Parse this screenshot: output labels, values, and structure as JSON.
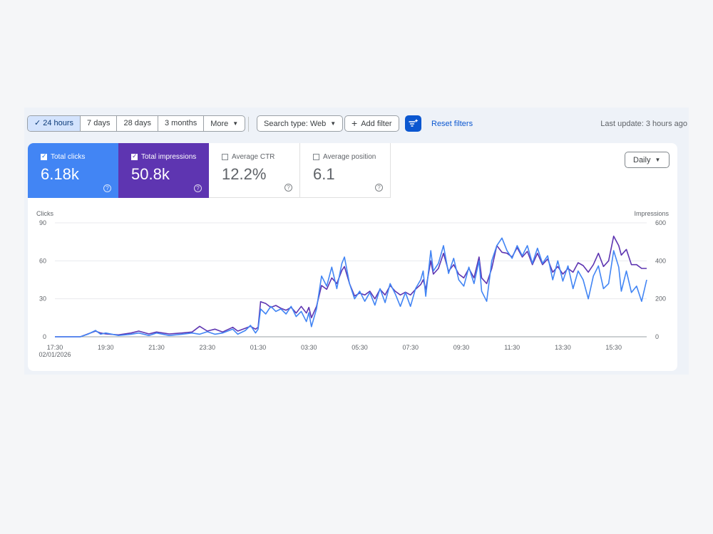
{
  "toolbar": {
    "ranges": [
      {
        "label": "24 hours",
        "active": true
      },
      {
        "label": "7 days",
        "active": false
      },
      {
        "label": "28 days",
        "active": false
      },
      {
        "label": "3 months",
        "active": false
      },
      {
        "label": "More",
        "active": false
      }
    ],
    "search_type": "Search type: Web",
    "add_filter": "Add filter",
    "reset_filters": "Reset filters",
    "last_update": "Last update: 3 hours ago"
  },
  "metrics": {
    "clicks": {
      "label": "Total clicks",
      "value": "6.18k",
      "checked": true
    },
    "impressions": {
      "label": "Total impressions",
      "value": "50.8k",
      "checked": true
    },
    "ctr": {
      "label": "Average CTR",
      "value": "12.2%",
      "checked": false
    },
    "position": {
      "label": "Average position",
      "value": "6.1",
      "checked": false
    }
  },
  "granularity": "Daily",
  "colors": {
    "clicks": "#4285f4",
    "impressions": "#5e35b1",
    "accent": "#0b57d0"
  },
  "chart_data": {
    "type": "line",
    "ylabel_left": "Clicks",
    "ylabel_right": "Impressions",
    "y_left_ticks": [
      0,
      30,
      60,
      90
    ],
    "y_right_ticks": [
      0,
      200,
      400,
      600
    ],
    "ylim_left": [
      0,
      90
    ],
    "ylim_right": [
      0,
      600
    ],
    "x_ticks": [
      "17:30",
      "19:30",
      "21:30",
      "23:30",
      "01:30",
      "03:30",
      "05:30",
      "07:30",
      "09:30",
      "11:30",
      "13:30",
      "15:30"
    ],
    "x_start_date": "02/01/2026",
    "x_range_hours": [
      0,
      23.3
    ],
    "grid": true,
    "series": [
      {
        "name": "Clicks",
        "axis": "left",
        "color": "#4285f4",
        "points": [
          [
            0,
            0
          ],
          [
            1,
            0
          ],
          [
            1.3,
            2
          ],
          [
            1.6,
            5
          ],
          [
            1.8,
            2
          ],
          [
            2,
            3
          ],
          [
            2.5,
            1
          ],
          [
            3,
            2
          ],
          [
            3.3,
            3
          ],
          [
            3.7,
            1
          ],
          [
            4,
            3
          ],
          [
            4.5,
            1
          ],
          [
            5,
            2
          ],
          [
            5.4,
            3
          ],
          [
            5.7,
            2
          ],
          [
            6,
            4
          ],
          [
            6.3,
            2
          ],
          [
            6.6,
            3
          ],
          [
            7,
            6
          ],
          [
            7.2,
            2
          ],
          [
            7.5,
            5
          ],
          [
            7.7,
            9
          ],
          [
            7.9,
            3
          ],
          [
            8,
            6
          ],
          [
            8.1,
            22
          ],
          [
            8.3,
            18
          ],
          [
            8.5,
            24
          ],
          [
            8.7,
            20
          ],
          [
            8.9,
            22
          ],
          [
            9.1,
            18
          ],
          [
            9.3,
            24
          ],
          [
            9.5,
            16
          ],
          [
            9.7,
            20
          ],
          [
            9.9,
            12
          ],
          [
            10,
            19
          ],
          [
            10.1,
            8
          ],
          [
            10.3,
            22
          ],
          [
            10.5,
            48
          ],
          [
            10.7,
            40
          ],
          [
            10.9,
            55
          ],
          [
            11.1,
            38
          ],
          [
            11.3,
            58
          ],
          [
            11.4,
            63
          ],
          [
            11.6,
            42
          ],
          [
            11.8,
            30
          ],
          [
            12,
            36
          ],
          [
            12.2,
            28
          ],
          [
            12.4,
            35
          ],
          [
            12.6,
            25
          ],
          [
            12.8,
            38
          ],
          [
            13,
            27
          ],
          [
            13.2,
            42
          ],
          [
            13.4,
            34
          ],
          [
            13.6,
            24
          ],
          [
            13.8,
            35
          ],
          [
            14,
            24
          ],
          [
            14.2,
            38
          ],
          [
            14.4,
            45
          ],
          [
            14.5,
            52
          ],
          [
            14.6,
            32
          ],
          [
            14.8,
            68
          ],
          [
            14.9,
            52
          ],
          [
            15.1,
            58
          ],
          [
            15.3,
            72
          ],
          [
            15.5,
            50
          ],
          [
            15.7,
            62
          ],
          [
            15.9,
            45
          ],
          [
            16.1,
            40
          ],
          [
            16.3,
            55
          ],
          [
            16.5,
            42
          ],
          [
            16.7,
            60
          ],
          [
            16.8,
            36
          ],
          [
            17,
            28
          ],
          [
            17.2,
            60
          ],
          [
            17.4,
            72
          ],
          [
            17.6,
            78
          ],
          [
            17.8,
            68
          ],
          [
            18,
            62
          ],
          [
            18.2,
            72
          ],
          [
            18.4,
            64
          ],
          [
            18.6,
            72
          ],
          [
            18.8,
            58
          ],
          [
            19,
            70
          ],
          [
            19.2,
            58
          ],
          [
            19.4,
            64
          ],
          [
            19.6,
            45
          ],
          [
            19.8,
            60
          ],
          [
            20,
            44
          ],
          [
            20.2,
            56
          ],
          [
            20.4,
            38
          ],
          [
            20.6,
            52
          ],
          [
            20.8,
            45
          ],
          [
            21,
            30
          ],
          [
            21.2,
            48
          ],
          [
            21.4,
            56
          ],
          [
            21.6,
            38
          ],
          [
            21.8,
            42
          ],
          [
            22,
            68
          ],
          [
            22.2,
            55
          ],
          [
            22.3,
            36
          ],
          [
            22.5,
            52
          ],
          [
            22.7,
            35
          ],
          [
            22.9,
            40
          ],
          [
            23.1,
            28
          ],
          [
            23.3,
            45
          ]
        ]
      },
      {
        "name": "Impressions",
        "axis": "right",
        "color": "#5e35b1",
        "points": [
          [
            0,
            0
          ],
          [
            1,
            0
          ],
          [
            1.3,
            15
          ],
          [
            1.6,
            30
          ],
          [
            1.8,
            20
          ],
          [
            2,
            15
          ],
          [
            2.5,
            10
          ],
          [
            3,
            20
          ],
          [
            3.3,
            30
          ],
          [
            3.7,
            15
          ],
          [
            4,
            25
          ],
          [
            4.5,
            15
          ],
          [
            5,
            20
          ],
          [
            5.4,
            25
          ],
          [
            5.7,
            55
          ],
          [
            6,
            30
          ],
          [
            6.3,
            40
          ],
          [
            6.6,
            25
          ],
          [
            7,
            50
          ],
          [
            7.2,
            30
          ],
          [
            7.5,
            45
          ],
          [
            7.7,
            55
          ],
          [
            7.9,
            40
          ],
          [
            8,
            50
          ],
          [
            8.1,
            185
          ],
          [
            8.3,
            175
          ],
          [
            8.5,
            155
          ],
          [
            8.7,
            165
          ],
          [
            8.9,
            150
          ],
          [
            9.1,
            140
          ],
          [
            9.3,
            155
          ],
          [
            9.5,
            125
          ],
          [
            9.7,
            160
          ],
          [
            9.9,
            125
          ],
          [
            10,
            155
          ],
          [
            10.1,
            100
          ],
          [
            10.3,
            160
          ],
          [
            10.5,
            270
          ],
          [
            10.7,
            250
          ],
          [
            10.9,
            310
          ],
          [
            11.1,
            280
          ],
          [
            11.3,
            350
          ],
          [
            11.4,
            370
          ],
          [
            11.6,
            280
          ],
          [
            11.8,
            215
          ],
          [
            12,
            230
          ],
          [
            12.2,
            220
          ],
          [
            12.4,
            240
          ],
          [
            12.6,
            200
          ],
          [
            12.8,
            250
          ],
          [
            13,
            220
          ],
          [
            13.2,
            270
          ],
          [
            13.4,
            240
          ],
          [
            13.6,
            220
          ],
          [
            13.8,
            235
          ],
          [
            14,
            220
          ],
          [
            14.2,
            250
          ],
          [
            14.4,
            275
          ],
          [
            14.5,
            300
          ],
          [
            14.6,
            250
          ],
          [
            14.8,
            400
          ],
          [
            14.9,
            330
          ],
          [
            15.1,
            360
          ],
          [
            15.3,
            440
          ],
          [
            15.5,
            345
          ],
          [
            15.7,
            380
          ],
          [
            15.9,
            330
          ],
          [
            16.1,
            310
          ],
          [
            16.3,
            360
          ],
          [
            16.5,
            310
          ],
          [
            16.7,
            420
          ],
          [
            16.8,
            310
          ],
          [
            17,
            280
          ],
          [
            17.2,
            360
          ],
          [
            17.4,
            480
          ],
          [
            17.6,
            445
          ],
          [
            17.8,
            440
          ],
          [
            18,
            420
          ],
          [
            18.2,
            470
          ],
          [
            18.4,
            420
          ],
          [
            18.6,
            450
          ],
          [
            18.8,
            380
          ],
          [
            19,
            440
          ],
          [
            19.2,
            380
          ],
          [
            19.4,
            410
          ],
          [
            19.6,
            340
          ],
          [
            19.8,
            370
          ],
          [
            20,
            330
          ],
          [
            20.2,
            360
          ],
          [
            20.4,
            340
          ],
          [
            20.6,
            390
          ],
          [
            20.8,
            375
          ],
          [
            21,
            340
          ],
          [
            21.2,
            380
          ],
          [
            21.4,
            440
          ],
          [
            21.6,
            370
          ],
          [
            21.8,
            400
          ],
          [
            22,
            530
          ],
          [
            22.2,
            480
          ],
          [
            22.3,
            430
          ],
          [
            22.5,
            460
          ],
          [
            22.7,
            380
          ],
          [
            22.9,
            380
          ],
          [
            23.1,
            360
          ],
          [
            23.3,
            360
          ]
        ]
      }
    ]
  }
}
